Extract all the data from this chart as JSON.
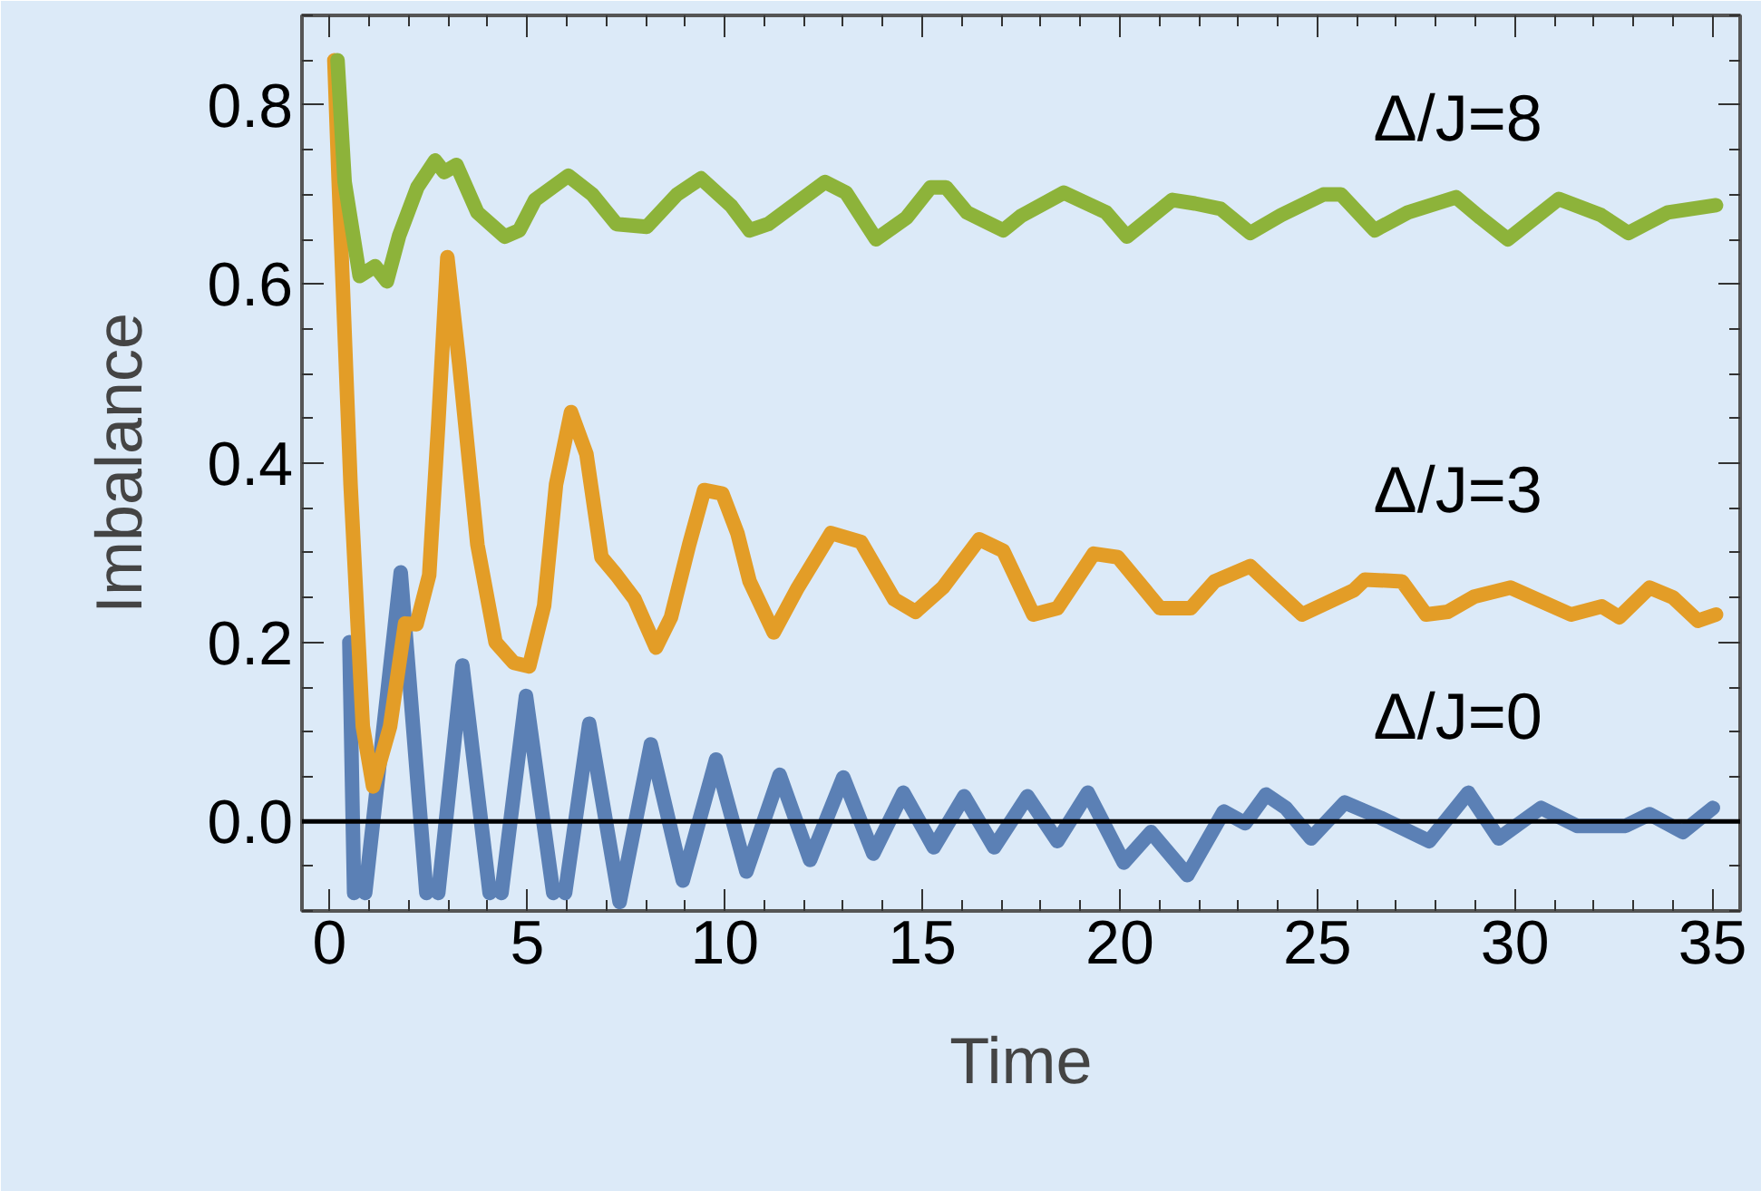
{
  "chart_data": {
    "type": "line",
    "xlabel": "Time",
    "ylabel": "Imbalance",
    "xlim": [
      -0.7,
      35.7
    ],
    "ylim": [
      -0.1,
      0.9
    ],
    "xticks": [
      0,
      5,
      10,
      15,
      20,
      25,
      30,
      35
    ],
    "yticks": [
      {
        "value": 0,
        "label": "0.0"
      },
      {
        "value": 0.2,
        "label": "0.2"
      },
      {
        "value": 0.4,
        "label": "0.4"
      },
      {
        "value": 0.6,
        "label": "0.6"
      },
      {
        "value": 0.8,
        "label": "0.8"
      }
    ],
    "grid": false,
    "legend": false,
    "line_style": "solid",
    "marker": "none",
    "ref_lines": [
      {
        "axis": "y",
        "value": 0,
        "color": "#000000"
      }
    ],
    "series": [
      {
        "name": "Δ/J=0",
        "color": "#5b80b5",
        "x": [
          0.5,
          0.62,
          0.75,
          0.9,
          1.8,
          2.45,
          2.6,
          2.75,
          3.36,
          4.05,
          4.2,
          4.35,
          4.97,
          5.66,
          5.81,
          5.96,
          6.57,
          7.34,
          8.13,
          8.94,
          9.78,
          10.55,
          11.39,
          12.16,
          13.0,
          13.76,
          14.52,
          15.29,
          16.06,
          16.82,
          17.66,
          18.42,
          19.19,
          20.1,
          20.79,
          21.71,
          22.63,
          23.17,
          23.7,
          24.2,
          24.84,
          25.69,
          26.6,
          27.83,
          28.82,
          29.59,
          30.66,
          31.57,
          32.8,
          33.41,
          34.25,
          35.01
        ],
        "values": [
          0.2,
          -0.08,
          null,
          -0.08,
          0.278,
          -0.08,
          null,
          -0.08,
          0.174,
          -0.08,
          null,
          -0.08,
          0.14,
          -0.08,
          null,
          -0.08,
          0.109,
          -0.09,
          0.086,
          -0.066,
          0.069,
          -0.056,
          0.052,
          -0.043,
          0.049,
          -0.036,
          0.032,
          -0.029,
          0.028,
          -0.029,
          0.028,
          -0.022,
          0.032,
          -0.046,
          -0.012,
          -0.06,
          0.011,
          -0.002,
          0.03,
          0.015,
          -0.019,
          0.021,
          0.004,
          -0.022,
          0.032,
          -0.019,
          0.015,
          -0.005,
          -0.005,
          0.008,
          -0.012,
          0.015
        ]
      },
      {
        "name": "Δ/J=3",
        "color": "#e39d27",
        "x": [
          0.12,
          0.23,
          0.53,
          0.84,
          1.1,
          1.53,
          1.91,
          2.2,
          2.52,
          2.75,
          2.98,
          3.28,
          3.74,
          4.2,
          4.66,
          5.05,
          5.43,
          5.73,
          6.11,
          6.5,
          6.88,
          7.26,
          7.72,
          8.26,
          8.64,
          9.1,
          9.48,
          9.94,
          10.32,
          10.63,
          11.24,
          11.85,
          12.69,
          13.45,
          14.29,
          14.83,
          15.52,
          16.44,
          17.05,
          17.81,
          18.42,
          19.34,
          19.95,
          21.02,
          21.79,
          22.4,
          23.3,
          23.78,
          24.61,
          25.92,
          26.2,
          27.14,
          27.75,
          28.3,
          28.97,
          29.89,
          31.42,
          32.2,
          32.64,
          33.41,
          34.0,
          34.63,
          35.09
        ],
        "values": [
          0.85,
          0.714,
          0.376,
          0.106,
          0.039,
          0.106,
          0.221,
          0.22,
          0.275,
          0.444,
          0.63,
          0.511,
          0.309,
          0.2,
          0.177,
          0.173,
          0.241,
          0.376,
          0.457,
          0.41,
          0.295,
          0.275,
          0.248,
          0.194,
          0.228,
          0.309,
          0.37,
          0.366,
          0.322,
          0.268,
          0.211,
          0.261,
          0.322,
          0.312,
          0.248,
          0.234,
          0.261,
          0.315,
          0.302,
          0.231,
          0.238,
          0.299,
          0.295,
          0.238,
          0.238,
          0.268,
          0.285,
          0.265,
          0.231,
          0.258,
          0.27,
          0.268,
          0.231,
          0.234,
          0.251,
          0.261,
          0.231,
          0.24,
          0.228,
          0.261,
          0.25,
          0.224,
          0.231
        ]
      },
      {
        "name": "Δ/J=8",
        "color": "#8db33a",
        "x": [
          0.2,
          0.38,
          0.76,
          1.15,
          1.45,
          1.76,
          2.22,
          2.67,
          2.9,
          3.21,
          3.74,
          4.43,
          4.8,
          5.2,
          6.04,
          6.65,
          7.26,
          8.03,
          8.79,
          9.4,
          10.17,
          10.63,
          11.1,
          12.54,
          13.07,
          13.83,
          14.6,
          15.21,
          15.6,
          16.13,
          17.05,
          17.5,
          18.58,
          19.65,
          20.18,
          21.33,
          21.9,
          22.55,
          23.3,
          24.08,
          25.15,
          25.6,
          26.45,
          27.29,
          28.51,
          29.13,
          29.82,
          31.11,
          32.18,
          32.87,
          33.87,
          35.09
        ],
        "values": [
          0.85,
          0.714,
          0.609,
          0.62,
          0.603,
          0.654,
          0.708,
          0.738,
          0.725,
          0.733,
          0.68,
          0.653,
          0.66,
          0.694,
          0.721,
          0.7,
          0.667,
          0.664,
          0.7,
          0.718,
          0.687,
          0.66,
          0.667,
          0.714,
          0.702,
          0.65,
          0.674,
          0.708,
          0.708,
          0.68,
          0.66,
          0.676,
          0.702,
          0.68,
          0.653,
          0.694,
          0.69,
          0.684,
          0.657,
          0.677,
          0.7,
          0.7,
          0.66,
          0.68,
          0.697,
          0.674,
          0.65,
          0.695,
          0.677,
          0.657,
          0.68,
          0.688
        ]
      }
    ]
  }
}
